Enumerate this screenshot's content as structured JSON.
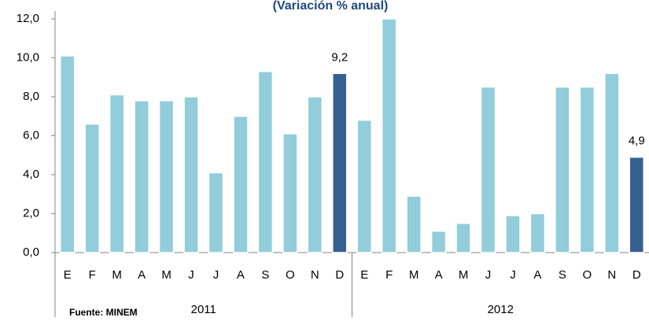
{
  "chart_data": {
    "type": "bar",
    "title": "(Variación % anual)",
    "source": "Fuente: MINEM",
    "categories": [
      "E",
      "F",
      "M",
      "A",
      "M",
      "J",
      "J",
      "A",
      "S",
      "O",
      "N",
      "D",
      "E",
      "F",
      "M",
      "A",
      "M",
      "J",
      "J",
      "A",
      "S",
      "O",
      "N",
      "D"
    ],
    "groups": [
      "2011",
      "2012"
    ],
    "values": [
      10.1,
      6.6,
      8.1,
      7.8,
      7.8,
      8.0,
      4.1,
      7.0,
      9.3,
      6.1,
      8.0,
      9.2,
      6.8,
      12.0,
      2.9,
      1.1,
      1.5,
      8.5,
      1.9,
      2.0,
      8.5,
      8.5,
      9.2,
      4.9
    ],
    "value_labels": [
      null,
      null,
      null,
      null,
      null,
      null,
      null,
      null,
      null,
      null,
      null,
      "9,2",
      null,
      null,
      null,
      null,
      null,
      null,
      null,
      null,
      null,
      null,
      null,
      "4,9"
    ],
    "colors": [
      "#92cddc",
      "#92cddc",
      "#92cddc",
      "#92cddc",
      "#92cddc",
      "#92cddc",
      "#92cddc",
      "#92cddc",
      "#92cddc",
      "#92cddc",
      "#92cddc",
      "#366092",
      "#92cddc",
      "#92cddc",
      "#92cddc",
      "#92cddc",
      "#92cddc",
      "#92cddc",
      "#92cddc",
      "#92cddc",
      "#92cddc",
      "#92cddc",
      "#92cddc",
      "#366092"
    ],
    "ylim": [
      0,
      12
    ],
    "yticks": [
      {
        "value": 0,
        "label": "0,0"
      },
      {
        "value": 2,
        "label": "2,0"
      },
      {
        "value": 4,
        "label": "4,0"
      },
      {
        "value": 6,
        "label": "6,0"
      },
      {
        "value": 8,
        "label": "8,0"
      },
      {
        "value": 10,
        "label": "10,0"
      },
      {
        "value": 12,
        "label": "12,0"
      }
    ]
  }
}
